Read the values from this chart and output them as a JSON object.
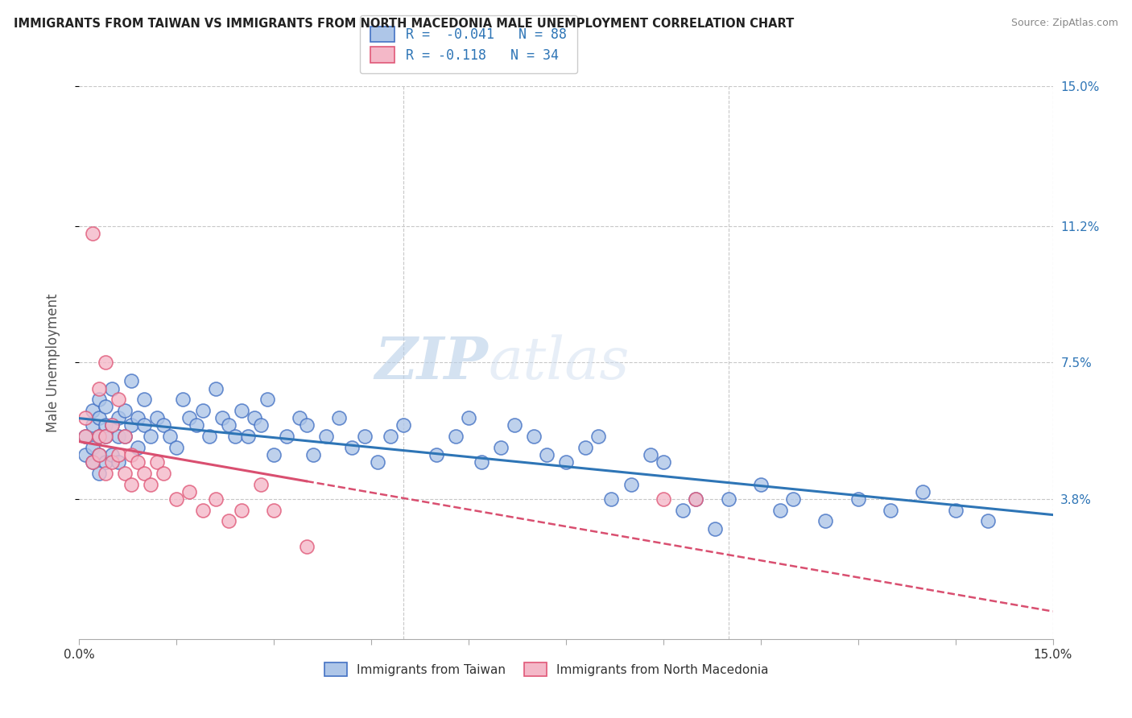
{
  "title": "IMMIGRANTS FROM TAIWAN VS IMMIGRANTS FROM NORTH MACEDONIA MALE UNEMPLOYMENT CORRELATION CHART",
  "source": "Source: ZipAtlas.com",
  "ylabel": "Male Unemployment",
  "xlim": [
    0.0,
    0.15
  ],
  "ylim": [
    0.0,
    0.15
  ],
  "y_tick_labels_right": [
    "15.0%",
    "11.2%",
    "7.5%",
    "3.8%"
  ],
  "y_tick_values_right": [
    0.15,
    0.112,
    0.075,
    0.038
  ],
  "legend_labels": [
    "Immigrants from Taiwan",
    "Immigrants from North Macedonia"
  ],
  "taiwan_color": "#aec6e8",
  "taiwan_edge_color": "#4472c4",
  "macedonia_color": "#f4b8c8",
  "macedonia_edge_color": "#e05878",
  "taiwan_R": -0.041,
  "taiwan_N": 88,
  "macedonia_R": -0.118,
  "macedonia_N": 34,
  "taiwan_line_color": "#2e75b6",
  "macedonia_line_color": "#d94f70",
  "watermark_zip": "ZIP",
  "watermark_atlas": "atlas",
  "background_color": "#ffffff",
  "grid_color": "#c8c8c8",
  "taiwan_x": [
    0.001,
    0.001,
    0.002,
    0.002,
    0.002,
    0.002,
    0.003,
    0.003,
    0.003,
    0.003,
    0.003,
    0.004,
    0.004,
    0.004,
    0.004,
    0.005,
    0.005,
    0.005,
    0.006,
    0.006,
    0.006,
    0.007,
    0.007,
    0.008,
    0.008,
    0.009,
    0.009,
    0.01,
    0.01,
    0.011,
    0.012,
    0.013,
    0.014,
    0.015,
    0.016,
    0.017,
    0.018,
    0.019,
    0.02,
    0.021,
    0.022,
    0.023,
    0.024,
    0.025,
    0.026,
    0.027,
    0.028,
    0.029,
    0.03,
    0.032,
    0.034,
    0.035,
    0.036,
    0.038,
    0.04,
    0.042,
    0.044,
    0.046,
    0.048,
    0.05,
    0.055,
    0.058,
    0.06,
    0.062,
    0.065,
    0.067,
    0.07,
    0.072,
    0.075,
    0.078,
    0.08,
    0.082,
    0.085,
    0.088,
    0.09,
    0.093,
    0.095,
    0.098,
    0.1,
    0.105,
    0.108,
    0.11,
    0.115,
    0.12,
    0.125,
    0.13,
    0.135,
    0.14
  ],
  "taiwan_y": [
    0.055,
    0.05,
    0.048,
    0.062,
    0.052,
    0.058,
    0.045,
    0.06,
    0.055,
    0.065,
    0.05,
    0.058,
    0.048,
    0.055,
    0.063,
    0.05,
    0.058,
    0.068,
    0.055,
    0.06,
    0.048,
    0.062,
    0.055,
    0.058,
    0.07,
    0.06,
    0.052,
    0.058,
    0.065,
    0.055,
    0.06,
    0.058,
    0.055,
    0.052,
    0.065,
    0.06,
    0.058,
    0.062,
    0.055,
    0.068,
    0.06,
    0.058,
    0.055,
    0.062,
    0.055,
    0.06,
    0.058,
    0.065,
    0.05,
    0.055,
    0.06,
    0.058,
    0.05,
    0.055,
    0.06,
    0.052,
    0.055,
    0.048,
    0.055,
    0.058,
    0.05,
    0.055,
    0.06,
    0.048,
    0.052,
    0.058,
    0.055,
    0.05,
    0.048,
    0.052,
    0.055,
    0.038,
    0.042,
    0.05,
    0.048,
    0.035,
    0.038,
    0.03,
    0.038,
    0.042,
    0.035,
    0.038,
    0.032,
    0.038,
    0.035,
    0.04,
    0.035,
    0.032
  ],
  "macedonia_x": [
    0.001,
    0.001,
    0.002,
    0.002,
    0.003,
    0.003,
    0.003,
    0.004,
    0.004,
    0.004,
    0.005,
    0.005,
    0.006,
    0.006,
    0.007,
    0.007,
    0.008,
    0.008,
    0.009,
    0.01,
    0.011,
    0.012,
    0.013,
    0.015,
    0.017,
    0.019,
    0.021,
    0.023,
    0.025,
    0.028,
    0.03,
    0.035,
    0.09,
    0.095
  ],
  "macedonia_y": [
    0.055,
    0.06,
    0.048,
    0.11,
    0.05,
    0.055,
    0.068,
    0.045,
    0.055,
    0.075,
    0.048,
    0.058,
    0.05,
    0.065,
    0.045,
    0.055,
    0.05,
    0.042,
    0.048,
    0.045,
    0.042,
    0.048,
    0.045,
    0.038,
    0.04,
    0.035,
    0.038,
    0.032,
    0.035,
    0.042,
    0.035,
    0.025,
    0.038,
    0.038
  ]
}
